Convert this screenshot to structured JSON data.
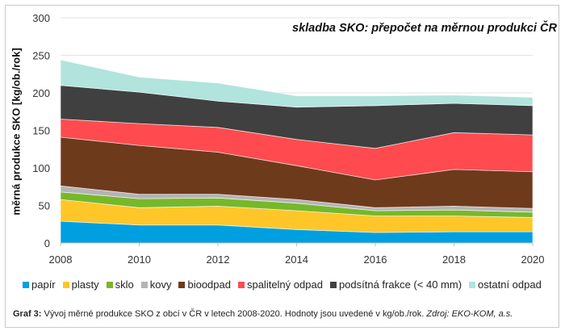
{
  "chart_data": {
    "type": "area",
    "stacked": true,
    "title": "skladba SKO: přepočet na měrnou produkci ČR",
    "xlabel": "",
    "ylabel": "měrná produkce SKO [kg/ob./rok]",
    "x": [
      2008,
      2010,
      2012,
      2014,
      2016,
      2018,
      2020
    ],
    "x_ticks": [
      "2008",
      "2010",
      "2012",
      "2014",
      "2016",
      "2018",
      "2020"
    ],
    "ylim": [
      0,
      300
    ],
    "y_ticks": [
      "0",
      "50",
      "100",
      "150",
      "200",
      "250",
      "300"
    ],
    "grid": true,
    "legend_position": "bottom",
    "series": [
      {
        "name": "papír",
        "color": "#00a0e0",
        "values": [
          29,
          24,
          24,
          18,
          14,
          15,
          15
        ]
      },
      {
        "name": "plasty",
        "color": "#ffc629",
        "values": [
          29,
          23,
          25,
          25,
          22,
          21,
          19
        ]
      },
      {
        "name": "sklo",
        "color": "#76b82a",
        "values": [
          10,
          12,
          11,
          10,
          7,
          8,
          7
        ]
      },
      {
        "name": "kovy",
        "color": "#b4b4b4",
        "values": [
          8,
          6,
          5,
          5,
          4,
          5,
          5
        ]
      },
      {
        "name": "bioodpad",
        "color": "#6e3a1c",
        "values": [
          65,
          65,
          56,
          45,
          37,
          49,
          49
        ]
      },
      {
        "name": "spalitelný odpad",
        "color": "#ff4b4f",
        "values": [
          24,
          29,
          33,
          35,
          42,
          49,
          49
        ]
      },
      {
        "name": "podsítná frakce (< 40 mm)",
        "color": "#404040",
        "values": [
          45,
          42,
          35,
          43,
          57,
          39,
          39
        ]
      },
      {
        "name": "ostatní odpad",
        "color": "#b0e4dc",
        "values": [
          34,
          20,
          24,
          15,
          13,
          11,
          11
        ]
      }
    ]
  },
  "caption": {
    "label": "Graf 3:",
    "text": " Vývoj měrné produkce SKO z obcí v ČR v letech  2008-2020. Hodnoty jsou uvedené  v kg/ob./rok. ",
    "source": "Zdroj: EKO-KOM, a.s."
  }
}
